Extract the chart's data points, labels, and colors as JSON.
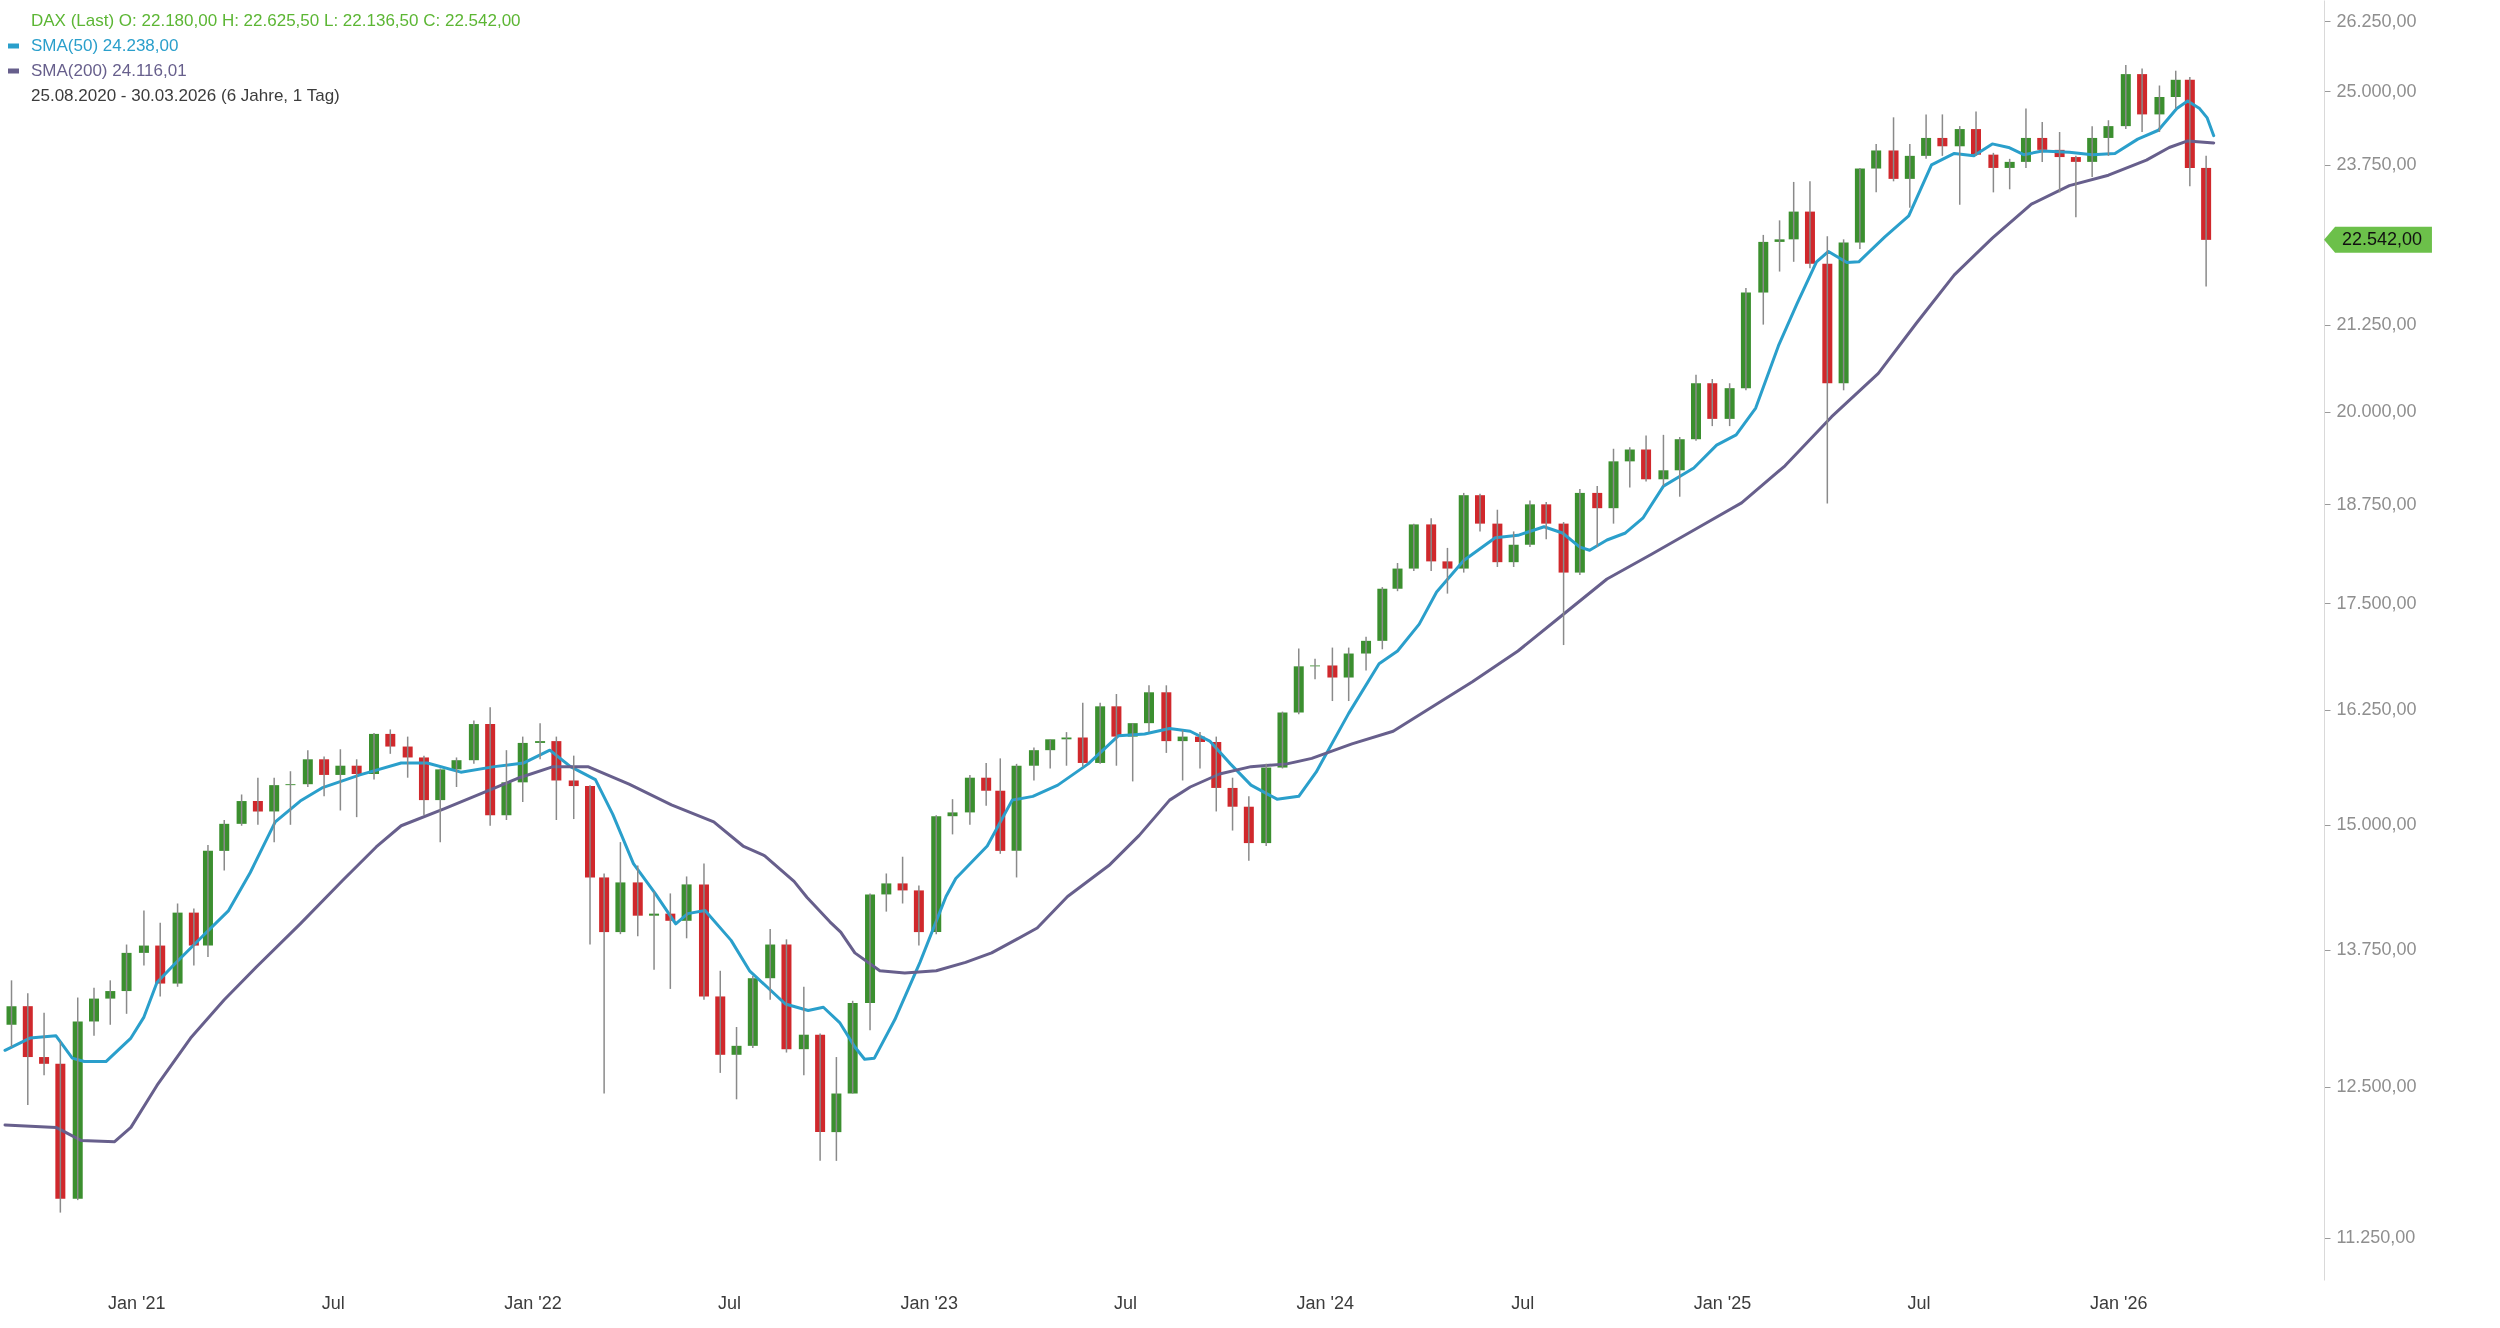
{
  "chart_data": {
    "type": "candlestick",
    "title": "DAX (Last) O: 22.180,00 H: 22.625,50 L: 22.136,50 C: 22.542,00",
    "subtitle": "25.08.2020 - 30.03.2026 (6 Jahre, 1 Tag)",
    "log": true,
    "grid": false,
    "legend": "top left",
    "xlim": [
      "2020-09-02",
      "2026-07-05"
    ],
    "xticks": [
      {
        "value": "2021-01-01",
        "label": "Jan '21"
      },
      {
        "value": "2021-07-01",
        "label": "Jul"
      },
      {
        "value": "2022-01-01",
        "label": "Jan '22"
      },
      {
        "value": "2022-07-01",
        "label": "Jul"
      },
      {
        "value": "2023-01-01",
        "label": "Jan '23"
      },
      {
        "value": "2023-07-01",
        "label": "Jul"
      },
      {
        "value": "2024-01-01",
        "label": "Jan '24"
      },
      {
        "value": "2024-07-01",
        "label": "Jul"
      },
      {
        "value": "2025-01-01",
        "label": "Jan '25"
      },
      {
        "value": "2025-07-01",
        "label": "Jul"
      },
      {
        "value": "2026-01-01",
        "label": "Jan '26"
      }
    ],
    "ylim": [
      10925,
      26640
    ],
    "yticks": [
      {
        "value": 11250,
        "label": "11.250,00"
      },
      {
        "value": 12500,
        "label": "12.500,00"
      },
      {
        "value": 13750,
        "label": "13.750,00"
      },
      {
        "value": 15000,
        "label": "15.000,00"
      },
      {
        "value": 16250,
        "label": "16.250,00"
      },
      {
        "value": 17500,
        "label": "17.500,00"
      },
      {
        "value": 18750,
        "label": "18.750,00"
      },
      {
        "value": 20000,
        "label": "20.000,00"
      },
      {
        "value": 21250,
        "label": "21.250,00"
      },
      {
        "value": 23750,
        "label": "23.750,00"
      },
      {
        "value": 25000,
        "label": "25.000,00"
      },
      {
        "value": 26250,
        "label": "26.250,00"
      }
    ],
    "annotations": [
      "22.542,00"
    ],
    "series": [
      {
        "type": "line",
        "name": "SMA(50) 24.238,00",
        "color": "#2a9fcb",
        "x": [
          "2020-09-02",
          "2020-09-25",
          "2020-10-19",
          "2020-11-03",
          "2020-11-14",
          "2020-12-04",
          "2020-12-27",
          "2021-01-08",
          "2021-01-20",
          "2021-02-04",
          "2021-03-03",
          "2021-03-27",
          "2021-04-16",
          "2021-05-09",
          "2021-06-01",
          "2021-06-21",
          "2021-07-26",
          "2021-09-02",
          "2021-09-26",
          "2021-10-27",
          "2021-11-27",
          "2021-12-24",
          "2022-01-17",
          "2022-02-05",
          "2022-02-28",
          "2022-03-16",
          "2022-04-04",
          "2022-04-24",
          "2022-05-13",
          "2022-05-24",
          "2022-06-09",
          "2022-07-03",
          "2022-07-20",
          "2022-08-22",
          "2022-09-12",
          "2022-09-26",
          "2022-10-11",
          "2022-10-25",
          "2022-11-03",
          "2022-11-12",
          "2022-12-01",
          "2022-12-24",
          "2023-01-17",
          "2023-01-26",
          "2023-02-24",
          "2023-03-19",
          "2023-04-07",
          "2023-04-30",
          "2023-05-28",
          "2023-06-25",
          "2023-07-19",
          "2023-08-11",
          "2023-08-30",
          "2023-09-17",
          "2023-10-06",
          "2023-10-25",
          "2023-11-18",
          "2023-12-08",
          "2023-12-24",
          "2024-01-23",
          "2024-02-20",
          "2024-03-08",
          "2024-03-28",
          "2024-04-13",
          "2024-05-08",
          "2024-06-06",
          "2024-06-27",
          "2024-07-21",
          "2024-08-07",
          "2024-08-23",
          "2024-09-01",
          "2024-09-17",
          "2024-10-04",
          "2024-10-20",
          "2024-11-08",
          "2024-12-06",
          "2024-12-27",
          "2025-01-14",
          "2025-02-01",
          "2025-02-22",
          "2025-03-11",
          "2025-03-29",
          "2025-04-09",
          "2025-04-26",
          "2025-05-07",
          "2025-05-31",
          "2025-06-22",
          "2025-07-13",
          "2025-08-03",
          "2025-08-21",
          "2025-09-07",
          "2025-09-22",
          "2025-10-06",
          "2025-10-23",
          "2025-11-17",
          "2025-12-08",
          "2025-12-29",
          "2026-01-19",
          "2026-02-07",
          "2026-02-24",
          "2026-03-06",
          "2026-03-17",
          "2026-03-24",
          "2026-03-30"
        ],
        "values": [
          12820,
          12930,
          12950,
          12750,
          12720,
          12720,
          12930,
          13120,
          13440,
          13600,
          13880,
          14130,
          14510,
          15030,
          15250,
          15390,
          15530,
          15660,
          15660,
          15560,
          15620,
          15660,
          15800,
          15620,
          15480,
          15110,
          14600,
          14300,
          14000,
          14100,
          14130,
          13840,
          13550,
          13240,
          13180,
          13210,
          13070,
          12850,
          12740,
          12750,
          13100,
          13630,
          14270,
          14450,
          14780,
          15260,
          15300,
          15420,
          15650,
          15960,
          15980,
          16040,
          16010,
          15900,
          15650,
          15420,
          15270,
          15300,
          15560,
          16210,
          16780,
          16930,
          17250,
          17640,
          18030,
          18320,
          18350,
          18460,
          18380,
          18200,
          18160,
          18290,
          18380,
          18570,
          18990,
          19230,
          19540,
          19680,
          20050,
          20940,
          21560,
          22200,
          22360,
          22190,
          22200,
          22590,
          22920,
          23750,
          23940,
          23900,
          24100,
          24040,
          23920,
          23980,
          23960,
          23920,
          23940,
          24180,
          24330,
          24700,
          24830,
          24700,
          24540,
          24238
        ]
      },
      {
        "type": "line",
        "name": "SMA(200) 24.116,01",
        "color": "#675f8c",
        "x": [
          "2020-09-02",
          "2020-10-19",
          "2020-11-11",
          "2020-12-12",
          "2020-12-27",
          "2021-01-20",
          "2021-02-20",
          "2021-03-23",
          "2021-04-23",
          "2021-06-01",
          "2021-07-10",
          "2021-08-10",
          "2021-09-02",
          "2021-10-12",
          "2021-11-19",
          "2021-12-20",
          "2022-01-20",
          "2022-02-21",
          "2022-03-31",
          "2022-05-09",
          "2022-06-17",
          "2022-07-14",
          "2022-08-03",
          "2022-08-30",
          "2022-09-11",
          "2022-10-02",
          "2022-10-12",
          "2022-10-25",
          "2022-11-17",
          "2022-12-10",
          "2023-01-08",
          "2023-02-04",
          "2023-02-28",
          "2023-03-23",
          "2023-04-11",
          "2023-05-09",
          "2023-06-16",
          "2023-07-14",
          "2023-08-11",
          "2023-08-30",
          "2023-09-26",
          "2023-10-25",
          "2023-11-27",
          "2023-12-20",
          "2024-01-26",
          "2024-03-04",
          "2024-04-15",
          "2024-05-16",
          "2024-06-27",
          "2024-08-07",
          "2024-09-17",
          "2024-10-28",
          "2024-12-09",
          "2025-01-19",
          "2025-02-28",
          "2025-04-12",
          "2025-05-25",
          "2025-06-29",
          "2025-08-03",
          "2025-09-07",
          "2025-10-13",
          "2025-11-17",
          "2025-12-23",
          "2026-01-27",
          "2026-02-17",
          "2026-03-06",
          "2026-03-30"
        ],
        "values": [
          12170,
          12150,
          12040,
          12030,
          12150,
          12510,
          12930,
          13280,
          13600,
          14000,
          14430,
          14770,
          14990,
          15170,
          15350,
          15500,
          15620,
          15620,
          15430,
          15210,
          15030,
          14780,
          14680,
          14420,
          14260,
          14020,
          13920,
          13720,
          13550,
          13530,
          13550,
          13630,
          13720,
          13850,
          13960,
          14270,
          14580,
          14890,
          15260,
          15400,
          15540,
          15620,
          15650,
          15710,
          15870,
          16010,
          16330,
          16570,
          16930,
          17360,
          17800,
          18110,
          18440,
          18770,
          19260,
          19930,
          20540,
          21270,
          22000,
          22570,
          23110,
          23410,
          23580,
          23830,
          24040,
          24150,
          24116
        ]
      },
      {
        "color": "#8a8a8a",
        "x": [
          "2020-09-08",
          "2020-09-23",
          "2020-10-08",
          "2020-10-23",
          "2020-11-08",
          "2020-11-23",
          "2020-12-08",
          "2020-12-23",
          "2021-01-08",
          "2021-01-23",
          "2021-02-08",
          "2021-02-23",
          "2021-03-08",
          "2021-03-23",
          "2021-04-08",
          "2021-04-23",
          "2021-05-08",
          "2021-05-23",
          "2021-06-08",
          "2021-06-23",
          "2021-07-08",
          "2021-07-23",
          "2021-08-08",
          "2021-08-23",
          "2021-09-08",
          "2021-09-23",
          "2021-10-08",
          "2021-10-23",
          "2021-11-08",
          "2021-11-23",
          "2021-12-08",
          "2021-12-23",
          "2022-01-08",
          "2022-01-23",
          "2022-02-08",
          "2022-02-23",
          "2022-03-08",
          "2022-03-23",
          "2022-04-08",
          "2022-04-23",
          "2022-05-08",
          "2022-05-23",
          "2022-06-08",
          "2022-06-23",
          "2022-07-08",
          "2022-07-23",
          "2022-08-08",
          "2022-08-23",
          "2022-09-08",
          "2022-09-23",
          "2022-10-08",
          "2022-10-23",
          "2022-11-08",
          "2022-11-23",
          "2022-12-08",
          "2022-12-23",
          "2023-01-08",
          "2023-01-23",
          "2023-02-08",
          "2023-02-23",
          "2023-03-08",
          "2023-03-23",
          "2023-04-08",
          "2023-04-23",
          "2023-05-08",
          "2023-05-23",
          "2023-06-08",
          "2023-06-23",
          "2023-07-08",
          "2023-07-23",
          "2023-08-08",
          "2023-08-23",
          "2023-09-08",
          "2023-09-23",
          "2023-10-08",
          "2023-10-23",
          "2023-11-08",
          "2023-11-23",
          "2023-12-08",
          "2023-12-23",
          "2024-01-08",
          "2024-01-23",
          "2024-02-08",
          "2024-02-23",
          "2024-03-08",
          "2024-03-23",
          "2024-04-08",
          "2024-04-23",
          "2024-05-08",
          "2024-05-23",
          "2024-06-08",
          "2024-06-23",
          "2024-07-08",
          "2024-07-23",
          "2024-08-08",
          "2024-08-23",
          "2024-09-08",
          "2024-09-23",
          "2024-10-08",
          "2024-10-23",
          "2024-11-08",
          "2024-11-23",
          "2024-12-08",
          "2024-12-23",
          "2025-01-08",
          "2025-01-23",
          "2025-02-08",
          "2025-02-23",
          "2025-03-08",
          "2025-03-23",
          "2025-04-08",
          "2025-04-23",
          "2025-05-08",
          "2025-05-23",
          "2025-06-08",
          "2025-06-23",
          "2025-07-08",
          "2025-07-23",
          "2025-08-08",
          "2025-08-23",
          "2025-09-08",
          "2025-09-23",
          "2025-10-08",
          "2025-10-23",
          "2025-11-08",
          "2025-11-23",
          "2025-12-08",
          "2025-12-23",
          "2026-01-08",
          "2026-01-23",
          "2026-02-08",
          "2026-02-23",
          "2026-03-08",
          "2026-03-23"
        ],
        "ohlc": [
          [
            13050,
            13460,
            12850,
            13220
          ],
          [
            13220,
            13340,
            12340,
            12760
          ],
          [
            12760,
            13160,
            12600,
            12700
          ],
          [
            12700,
            12900,
            11450,
            11560
          ],
          [
            11560,
            13300,
            11550,
            13080
          ],
          [
            13080,
            13390,
            12950,
            13290
          ],
          [
            13290,
            13460,
            13050,
            13360
          ],
          [
            13360,
            13800,
            13150,
            13720
          ],
          [
            13720,
            14130,
            13600,
            13790
          ],
          [
            13790,
            14010,
            13310,
            13430
          ],
          [
            13430,
            14200,
            13400,
            14110
          ],
          [
            14110,
            14150,
            13600,
            13790
          ],
          [
            13790,
            14790,
            13680,
            14730
          ],
          [
            14730,
            15050,
            14530,
            15010
          ],
          [
            15010,
            15320,
            14990,
            15250
          ],
          [
            15250,
            15500,
            15000,
            15140
          ],
          [
            15140,
            15500,
            14820,
            15420
          ],
          [
            15420,
            15570,
            15000,
            15430
          ],
          [
            15430,
            15800,
            15400,
            15700
          ],
          [
            15700,
            15730,
            15300,
            15530
          ],
          [
            15530,
            15810,
            15150,
            15630
          ],
          [
            15630,
            15700,
            15080,
            15540
          ],
          [
            15540,
            15990,
            15480,
            15980
          ],
          [
            15980,
            16030,
            15760,
            15840
          ],
          [
            15840,
            15950,
            15500,
            15720
          ],
          [
            15720,
            15740,
            15100,
            15260
          ],
          [
            15260,
            15600,
            14820,
            15590
          ],
          [
            15590,
            15720,
            15400,
            15690
          ],
          [
            15690,
            16130,
            15650,
            16090
          ],
          [
            16090,
            16280,
            14990,
            15100
          ],
          [
            15100,
            15800,
            15050,
            15450
          ],
          [
            15450,
            15950,
            15240,
            15880
          ],
          [
            15880,
            16100,
            15700,
            15900
          ],
          [
            15900,
            15950,
            15050,
            15470
          ],
          [
            15470,
            15740,
            15060,
            15410
          ],
          [
            15410,
            15420,
            13800,
            14460
          ],
          [
            14460,
            14500,
            12440,
            13920
          ],
          [
            13920,
            14820,
            13900,
            14410
          ],
          [
            14410,
            14580,
            13880,
            14080
          ],
          [
            14080,
            14320,
            13560,
            14100
          ],
          [
            14100,
            14300,
            13380,
            14030
          ],
          [
            14030,
            14470,
            13860,
            14390
          ],
          [
            14390,
            14600,
            13280,
            13310
          ],
          [
            13310,
            13550,
            12620,
            12780
          ],
          [
            12780,
            13030,
            12390,
            12860
          ],
          [
            12860,
            13500,
            12840,
            13480
          ],
          [
            13480,
            13950,
            13280,
            13800
          ],
          [
            13800,
            13850,
            12800,
            12830
          ],
          [
            12830,
            13400,
            12600,
            12960
          ],
          [
            12960,
            12970,
            11870,
            12110
          ],
          [
            12110,
            12760,
            11870,
            12440
          ],
          [
            12440,
            13270,
            12440,
            13250
          ],
          [
            13250,
            14300,
            13000,
            14290
          ],
          [
            14290,
            14500,
            14120,
            14400
          ],
          [
            14400,
            14670,
            14200,
            14330
          ],
          [
            14330,
            14380,
            13790,
            13920
          ],
          [
            13920,
            15100,
            13900,
            15090
          ],
          [
            15090,
            15270,
            14900,
            15130
          ],
          [
            15130,
            15530,
            15000,
            15500
          ],
          [
            15500,
            15660,
            15200,
            15360
          ],
          [
            15360,
            15710,
            14700,
            14730
          ],
          [
            14730,
            15650,
            14460,
            15630
          ],
          [
            15630,
            15830,
            15470,
            15800
          ],
          [
            15800,
            15920,
            15600,
            15920
          ],
          [
            15920,
            16000,
            15630,
            15940
          ],
          [
            15940,
            16330,
            15620,
            15660
          ],
          [
            15660,
            16330,
            15650,
            16290
          ],
          [
            16290,
            16430,
            15630,
            15950
          ],
          [
            15950,
            16100,
            15460,
            16100
          ],
          [
            16100,
            16530,
            16000,
            16450
          ],
          [
            16450,
            16530,
            15770,
            15900
          ],
          [
            15900,
            16020,
            15470,
            15950
          ],
          [
            15950,
            16000,
            15600,
            15890
          ],
          [
            15890,
            15950,
            15140,
            15390
          ],
          [
            15390,
            15500,
            14940,
            15190
          ],
          [
            15190,
            15300,
            14630,
            14810
          ],
          [
            14810,
            15650,
            14780,
            15610
          ],
          [
            15610,
            16230,
            15600,
            16220
          ],
          [
            16220,
            16960,
            16200,
            16750
          ],
          [
            16750,
            16840,
            16600,
            16760
          ],
          [
            16760,
            16970,
            16350,
            16620
          ],
          [
            16620,
            16970,
            16350,
            16900
          ],
          [
            16900,
            17100,
            16700,
            17050
          ],
          [
            17050,
            17700,
            16950,
            17680
          ],
          [
            17680,
            18000,
            17650,
            17930
          ],
          [
            17930,
            18500,
            17900,
            18490
          ],
          [
            18490,
            18570,
            17900,
            18020
          ],
          [
            18020,
            18190,
            17620,
            17930
          ],
          [
            17930,
            18900,
            17880,
            18870
          ],
          [
            18870,
            18890,
            18400,
            18500
          ],
          [
            18500,
            18680,
            17950,
            18010
          ],
          [
            18010,
            18400,
            17950,
            18230
          ],
          [
            18230,
            18800,
            18200,
            18750
          ],
          [
            18750,
            18780,
            18300,
            18500
          ],
          [
            18500,
            18520,
            17000,
            17880
          ],
          [
            17880,
            18950,
            17850,
            18900
          ],
          [
            18900,
            18990,
            18200,
            18700
          ],
          [
            18700,
            19490,
            18500,
            19320
          ],
          [
            19320,
            19510,
            18970,
            19480
          ],
          [
            19480,
            19670,
            19050,
            19080
          ],
          [
            19080,
            19680,
            18990,
            19200
          ],
          [
            19200,
            19650,
            18850,
            19620
          ],
          [
            19620,
            20520,
            19600,
            20400
          ],
          [
            20400,
            20460,
            19800,
            19900
          ],
          [
            19900,
            20400,
            19800,
            20330
          ],
          [
            20330,
            21800,
            20300,
            21730
          ],
          [
            21730,
            22620,
            21250,
            22510
          ],
          [
            22510,
            22850,
            22050,
            22550
          ],
          [
            22550,
            23470,
            22200,
            22990
          ],
          [
            22990,
            23480,
            22100,
            22170
          ],
          [
            22170,
            22600,
            18760,
            20400
          ],
          [
            20400,
            22550,
            20300,
            22500
          ],
          [
            22500,
            23700,
            22400,
            23690
          ],
          [
            23690,
            24100,
            23300,
            23990
          ],
          [
            23990,
            24550,
            23480,
            23520
          ],
          [
            23520,
            24100,
            23050,
            23900
          ],
          [
            23900,
            24600,
            23850,
            24200
          ],
          [
            24200,
            24600,
            23900,
            24060
          ],
          [
            24060,
            24400,
            23100,
            24350
          ],
          [
            24350,
            24650,
            23900,
            23920
          ],
          [
            23920,
            23950,
            23300,
            23700
          ],
          [
            23700,
            23850,
            23350,
            23800
          ],
          [
            23800,
            24700,
            23700,
            24200
          ],
          [
            24200,
            24470,
            23800,
            24000
          ],
          [
            24000,
            24300,
            23300,
            23880
          ],
          [
            23880,
            23900,
            22900,
            23800
          ],
          [
            23800,
            24400,
            23550,
            24200
          ],
          [
            24200,
            24500,
            23900,
            24400
          ],
          [
            24400,
            25460,
            24350,
            25300
          ],
          [
            25300,
            25400,
            24300,
            24600
          ],
          [
            24600,
            25100,
            24300,
            24900
          ],
          [
            24900,
            25360,
            24700,
            25200
          ],
          [
            25200,
            25250,
            23400,
            23700
          ],
          [
            23700,
            23900,
            21820,
            22542
          ]
        ],
        "colors": [
          "#3b8f2f",
          "#d0282c",
          "#d0282c",
          "#d0282c",
          "#3b8f2f",
          "#3b8f2f",
          "#3b8f2f",
          "#3b8f2f",
          "#3b8f2f",
          "#d0282c",
          "#3b8f2f",
          "#d0282c",
          "#3b8f2f",
          "#3b8f2f",
          "#3b8f2f",
          "#d0282c",
          "#3b8f2f",
          "#3b8f2f",
          "#3b8f2f",
          "#d0282c",
          "#3b8f2f",
          "#d0282c",
          "#3b8f2f",
          "#d0282c",
          "#d0282c",
          "#d0282c",
          "#3b8f2f",
          "#3b8f2f",
          "#3b8f2f",
          "#d0282c",
          "#3b8f2f",
          "#3b8f2f",
          "#3b8f2f",
          "#d0282c",
          "#d0282c",
          "#d0282c",
          "#d0282c",
          "#3b8f2f",
          "#d0282c",
          "#3b8f2f",
          "#d0282c",
          "#3b8f2f",
          "#d0282c",
          "#d0282c",
          "#3b8f2f",
          "#3b8f2f",
          "#3b8f2f",
          "#d0282c",
          "#3b8f2f",
          "#d0282c",
          "#3b8f2f",
          "#3b8f2f",
          "#3b8f2f",
          "#3b8f2f",
          "#d0282c",
          "#d0282c",
          "#3b8f2f",
          "#3b8f2f",
          "#3b8f2f",
          "#d0282c",
          "#d0282c",
          "#3b8f2f",
          "#3b8f2f",
          "#3b8f2f",
          "#3b8f2f",
          "#d0282c",
          "#3b8f2f",
          "#d0282c",
          "#3b8f2f",
          "#3b8f2f",
          "#d0282c",
          "#3b8f2f",
          "#d0282c",
          "#d0282c",
          "#d0282c",
          "#d0282c",
          "#3b8f2f",
          "#3b8f2f",
          "#3b8f2f",
          "#3b8f2f",
          "#d0282c",
          "#3b8f2f",
          "#3b8f2f",
          "#3b8f2f",
          "#3b8f2f",
          "#3b8f2f",
          "#d0282c",
          "#d0282c",
          "#3b8f2f",
          "#d0282c",
          "#d0282c",
          "#3b8f2f",
          "#3b8f2f",
          "#d0282c",
          "#d0282c",
          "#3b8f2f",
          "#d0282c",
          "#3b8f2f",
          "#3b8f2f",
          "#d0282c",
          "#3b8f2f",
          "#3b8f2f",
          "#3b8f2f",
          "#d0282c",
          "#3b8f2f",
          "#3b8f2f",
          "#3b8f2f",
          "#3b8f2f",
          "#3b8f2f",
          "#d0282c",
          "#d0282c",
          "#3b8f2f",
          "#3b8f2f",
          "#3b8f2f",
          "#d0282c",
          "#3b8f2f",
          "#3b8f2f",
          "#d0282c",
          "#3b8f2f",
          "#d0282c",
          "#d0282c",
          "#3b8f2f",
          "#3b8f2f",
          "#d0282c",
          "#d0282c",
          "#d0282c",
          "#3b8f2f",
          "#3b8f2f",
          "#3b8f2f",
          "#d0282c",
          "#3b8f2f",
          "#3b8f2f",
          "#d0282c",
          "#d0282c"
        ]
      }
    ]
  }
}
